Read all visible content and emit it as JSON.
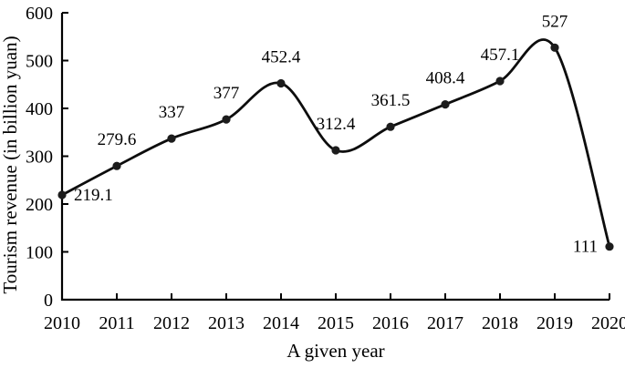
{
  "chart_data": {
    "type": "line",
    "title": "",
    "xlabel": "A given year",
    "ylabel": "Tourism revenue (in billion yuan)",
    "x": [
      2010,
      2011,
      2012,
      2013,
      2014,
      2015,
      2016,
      2017,
      2018,
      2019,
      2020
    ],
    "values": [
      219.1,
      279.6,
      337,
      377,
      452.4,
      312.4,
      361.5,
      408.4,
      457.1,
      527,
      111
    ],
    "labels": [
      "219.1",
      "279.6",
      "337",
      "377",
      "452.4",
      "312.4",
      "361.5",
      "408.4",
      "457.1",
      "527",
      "111"
    ],
    "label_positions": [
      "right",
      "above",
      "above",
      "above",
      "above",
      "above",
      "above",
      "above",
      "above",
      "above",
      "left"
    ],
    "ylim": [
      0,
      600
    ],
    "ytick_step": 100,
    "grid": false,
    "smooth": true,
    "legend": "none",
    "line_color": "#0d0d0d",
    "marker_color": "#1c1c1c",
    "axis_color": "#000000",
    "text_color": "#000000"
  }
}
